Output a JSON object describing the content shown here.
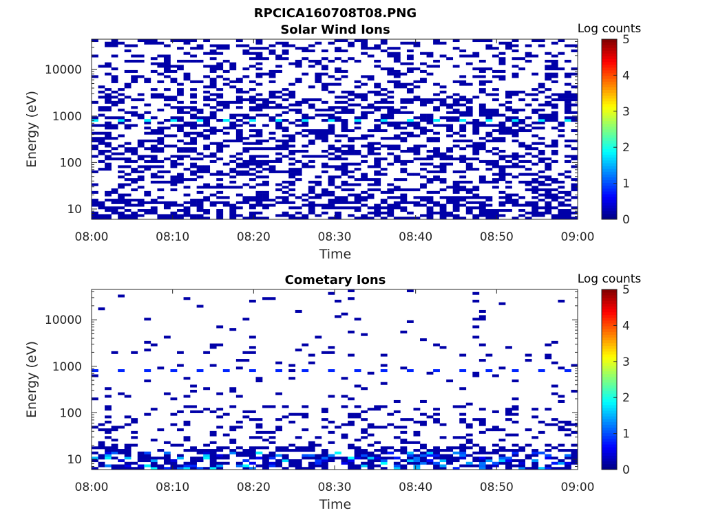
{
  "chart_data": [
    {
      "type": "heatmap",
      "figure_title": "RPCICA160708T08.PNG",
      "title": "Solar Wind Ions",
      "xlabel": "Time",
      "ylabel": "Energy (eV)",
      "x_range": [
        "08:00",
        "09:00"
      ],
      "x_ticks": [
        "08:00",
        "08:10",
        "08:20",
        "08:30",
        "08:40",
        "08:50",
        "09:00"
      ],
      "y_scale": "log",
      "y_range": [
        6,
        45000
      ],
      "y_ticks": [
        {
          "value": 10,
          "label": "10"
        },
        {
          "value": 100,
          "label": "100"
        },
        {
          "value": 1000,
          "label": "1000"
        },
        {
          "value": 10000,
          "label": "10000"
        }
      ],
      "colorbar": {
        "label": "Log counts",
        "range": [
          0,
          5
        ],
        "ticks": [
          "0",
          "1",
          "2",
          "3",
          "4",
          "5"
        ],
        "colormap": "jet"
      },
      "time_steps": 74,
      "energy_bins": 70,
      "peak_energy_eV": 750,
      "peak_log_counts": 1.8,
      "peak_interval_minutes": 3.2,
      "background_log_counts": 0.2
    },
    {
      "type": "heatmap",
      "title": "Cometary Ions",
      "xlabel": "Time",
      "ylabel": "Energy (eV)",
      "x_range": [
        "08:00",
        "09:00"
      ],
      "x_ticks": [
        "08:00",
        "08:10",
        "08:20",
        "08:30",
        "08:40",
        "08:50",
        "09:00"
      ],
      "y_scale": "log",
      "y_range": [
        6,
        45000
      ],
      "y_ticks": [
        {
          "value": 10,
          "label": "10"
        },
        {
          "value": 100,
          "label": "100"
        },
        {
          "value": 1000,
          "label": "1000"
        },
        {
          "value": 10000,
          "label": "10000"
        }
      ],
      "colorbar": {
        "label": "Log counts",
        "range": [
          0,
          5
        ],
        "ticks": [
          "0",
          "1",
          "2",
          "3",
          "4",
          "5"
        ],
        "colormap": "jet"
      },
      "time_steps": 74,
      "energy_bins": 70,
      "peak_energy_eV": 750,
      "peak_log_counts": 0.8,
      "low_energy_max_log_counts": 1.9,
      "background_log_counts": 0.2
    }
  ]
}
